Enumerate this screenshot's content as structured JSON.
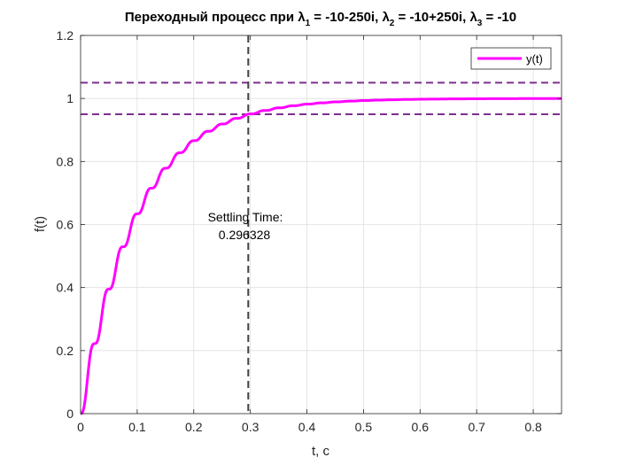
{
  "chart_data": {
    "type": "line",
    "title": {
      "prefix": "Переходный процесс при ",
      "lambda1_sym": "λ",
      "lambda1_sub": "1",
      "lambda1_val": " = -10-250i, ",
      "lambda2_sym": "λ",
      "lambda2_sub": "2",
      "lambda2_val": " = -10+250i, ",
      "lambda3_sym": "λ",
      "lambda3_sub": "3",
      "lambda3_val": " = -10"
    },
    "xlabel": "t, c",
    "ylabel": "f(t)",
    "xlim": [
      0,
      0.85
    ],
    "ylim": [
      0,
      1.2
    ],
    "xticks": [
      0,
      0.1,
      0.2,
      0.3,
      0.4,
      0.5,
      0.6,
      0.7,
      0.8
    ],
    "xtick_labels": [
      "0",
      "0.1",
      "0.2",
      "0.3",
      "0.4",
      "0.5",
      "0.6",
      "0.7",
      "0.8"
    ],
    "yticks": [
      0,
      0.2,
      0.4,
      0.6,
      0.8,
      1.0,
      1.2
    ],
    "ytick_labels": [
      "0",
      "0.2",
      "0.4",
      "0.6",
      "0.8",
      "1",
      "1.2"
    ],
    "grid": true,
    "legend": {
      "placement": "top-right",
      "entries": [
        "y(t)"
      ]
    },
    "series": [
      {
        "name": "y(t)",
        "color": "#ff00ff",
        "model": {
          "final_value": 1.0,
          "decay_rate": 10,
          "osc_freq": 250,
          "osc_decay": 10,
          "osc_amp": 0.04
        }
      }
    ],
    "tolerance_band": {
      "upper": 1.05,
      "lower": 0.95,
      "color": "#7e2f8e"
    },
    "settling_time": {
      "x": 0.296328,
      "label": "Settling Time:",
      "value_text": "0.296328",
      "color": "#404040"
    }
  }
}
